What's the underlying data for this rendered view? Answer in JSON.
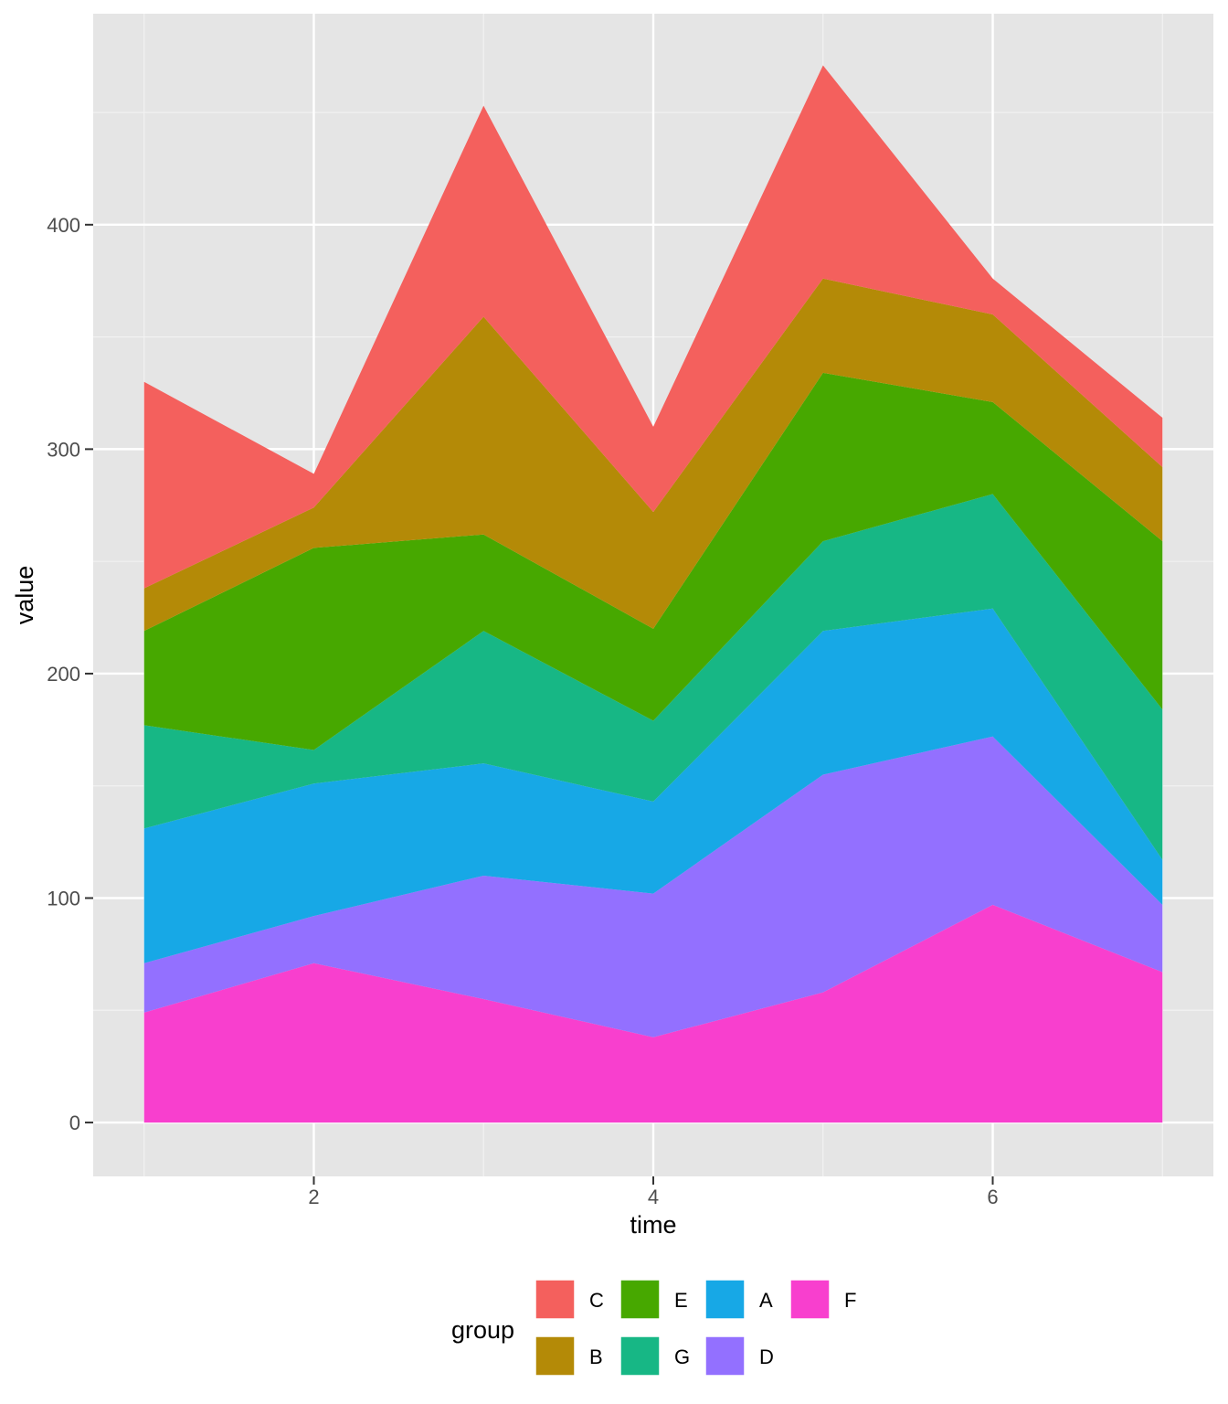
{
  "chart_data": {
    "type": "area",
    "stacked": true,
    "xlabel": "time",
    "ylabel": "value",
    "x": [
      1,
      2,
      3,
      4,
      5,
      6,
      7
    ],
    "x_ticks": [
      "2",
      "4",
      "6"
    ],
    "y_ticks": [
      "0",
      "100",
      "200",
      "300",
      "400"
    ],
    "xlim": [
      0.7,
      7.3
    ],
    "ylim": [
      -24,
      494
    ],
    "grid": true,
    "legend": {
      "title": "group",
      "position": "bottom",
      "order": [
        "C",
        "B",
        "E",
        "G",
        "A",
        "D",
        "F"
      ]
    },
    "series": [
      {
        "name": "F",
        "color": "#F8766D",
        "fill": "#F83FCE",
        "values": [
          49,
          71,
          55,
          38,
          58,
          97,
          67
        ]
      },
      {
        "name": "D",
        "fill": "#9370FF",
        "values": [
          22,
          21,
          55,
          64,
          97,
          75,
          30
        ]
      },
      {
        "name": "A",
        "fill": "#17A8E6",
        "values": [
          60,
          59,
          50,
          41,
          64,
          57,
          20
        ]
      },
      {
        "name": "G",
        "fill": "#17B785",
        "values": [
          46,
          15,
          59,
          36,
          40,
          51,
          67
        ]
      },
      {
        "name": "E",
        "fill": "#47A800",
        "values": [
          42,
          90,
          43,
          41,
          75,
          41,
          75
        ]
      },
      {
        "name": "B",
        "fill": "#B48A07",
        "values": [
          19,
          18,
          97,
          52,
          42,
          39,
          33
        ]
      },
      {
        "name": "C",
        "fill": "#F4605D",
        "values": [
          92,
          15,
          94,
          38,
          95,
          16,
          22
        ]
      }
    ]
  }
}
